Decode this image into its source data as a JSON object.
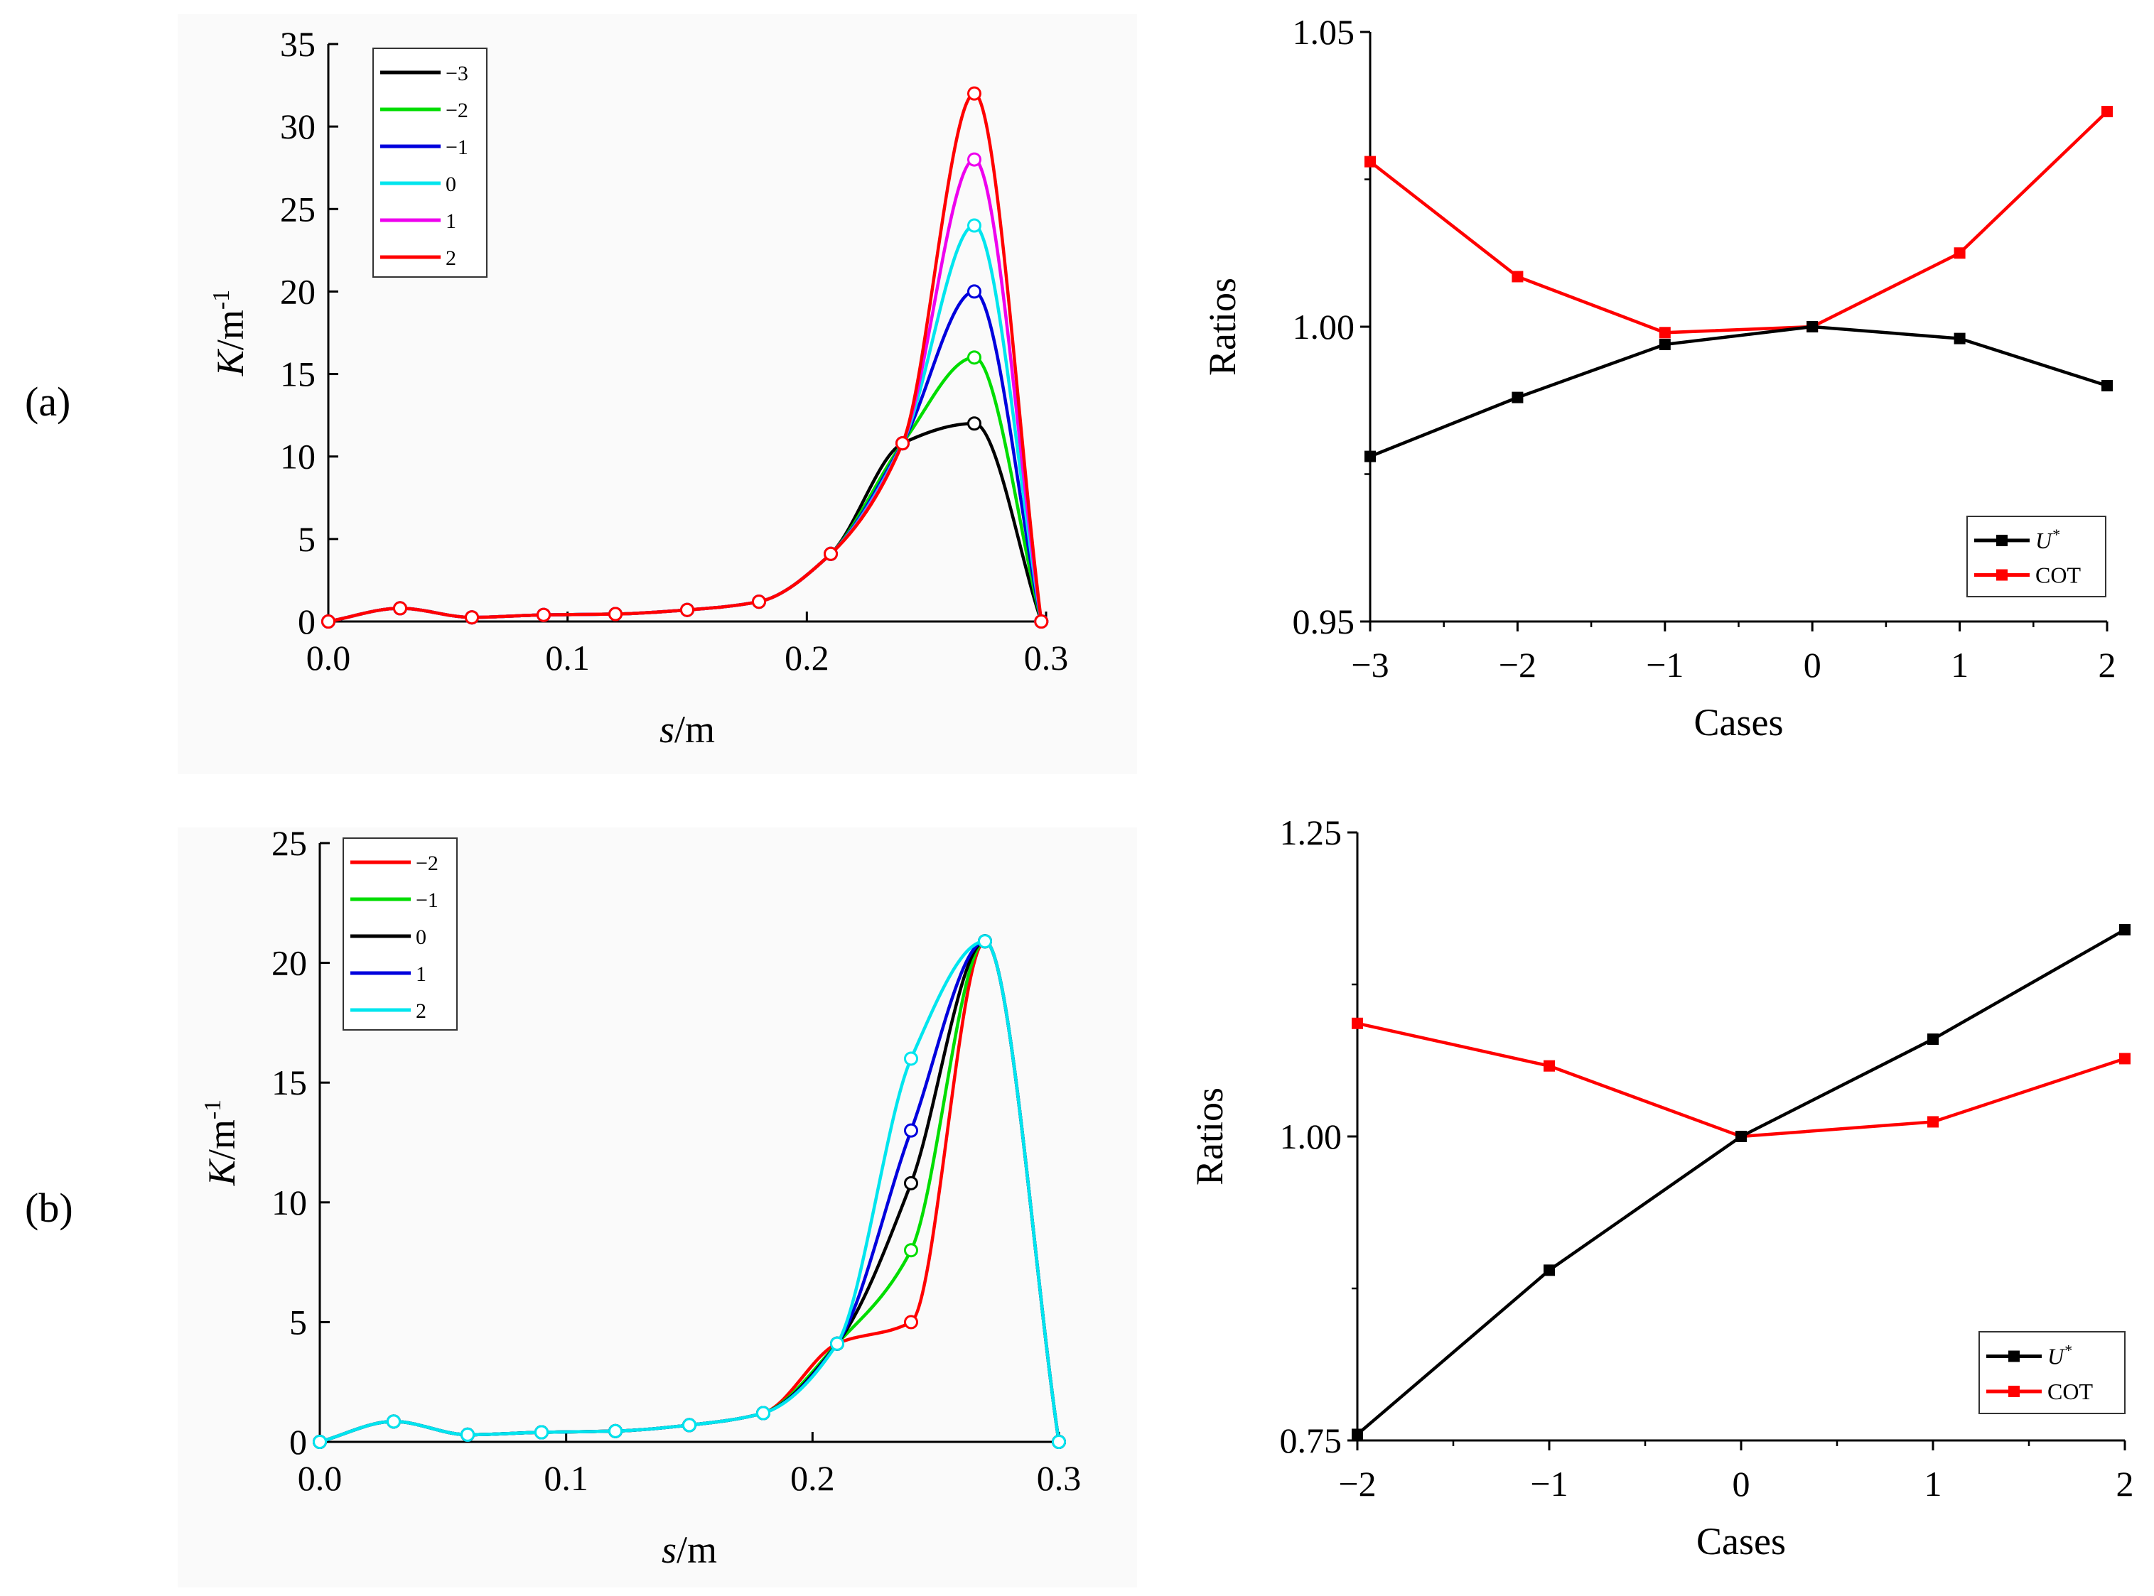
{
  "panel_labels": [
    "(a)",
    "(b)"
  ],
  "colors": {
    "-3": "#000000",
    "-2": "#00dd00",
    "-1": "#0000dd",
    "0": "#00e5ee",
    "1": "#ee00ee",
    "2": "#ff0000",
    "b_-2": "#ff0000",
    "b_-1": "#00dd00",
    "b_0": "#000000",
    "b_1": "#0000dd",
    "b_2": "#00e5ee",
    "U": "#000000",
    "COT": "#ff0000"
  },
  "chart_data": [
    {
      "id": "a-left",
      "type": "line",
      "xlabel_italic": "s",
      "xlabel_unit": "/m",
      "ylabel_italic": "K",
      "ylabel_unit": "/m",
      "ylabel_sup": "-1",
      "xlim": [
        0.0,
        0.3
      ],
      "ylim": [
        0,
        35
      ],
      "xticks": [
        "0.0",
        "0.1",
        "0.2",
        "0.3"
      ],
      "yticks": [
        "0",
        "5",
        "10",
        "15",
        "20",
        "25",
        "30",
        "35"
      ],
      "legend": [
        "−3",
        "−2",
        "−1",
        "0",
        "1",
        "2"
      ],
      "x": [
        0.0,
        0.03,
        0.06,
        0.09,
        0.12,
        0.15,
        0.18,
        0.21,
        0.24,
        0.27,
        0.298
      ],
      "series": [
        {
          "name": "-3",
          "values": [
            0,
            0.8,
            0.25,
            0.4,
            0.45,
            0.7,
            1.2,
            4.1,
            10.8,
            12.0,
            0
          ]
        },
        {
          "name": "-2",
          "values": [
            0,
            0.8,
            0.25,
            0.4,
            0.45,
            0.7,
            1.2,
            4.1,
            10.8,
            16.0,
            0
          ]
        },
        {
          "name": "-1",
          "values": [
            0,
            0.8,
            0.25,
            0.4,
            0.45,
            0.7,
            1.2,
            4.1,
            10.8,
            20.0,
            0
          ]
        },
        {
          "name": "0",
          "values": [
            0,
            0.8,
            0.25,
            0.4,
            0.45,
            0.7,
            1.2,
            4.1,
            10.8,
            24.0,
            0
          ]
        },
        {
          "name": "1",
          "values": [
            0,
            0.8,
            0.25,
            0.4,
            0.45,
            0.7,
            1.2,
            4.1,
            10.8,
            28.0,
            0
          ]
        },
        {
          "name": "2",
          "values": [
            0,
            0.8,
            0.25,
            0.4,
            0.45,
            0.7,
            1.2,
            4.1,
            10.8,
            32.0,
            0
          ]
        }
      ]
    },
    {
      "id": "a-right",
      "type": "line",
      "xlabel": "Cases",
      "ylabel": "Ratios",
      "xlim": [
        -3,
        2
      ],
      "ylim": [
        0.95,
        1.05
      ],
      "xticks": [
        "−3",
        "−2",
        "−1",
        "0",
        "1",
        "2"
      ],
      "yticks": [
        "0.95",
        "1.00",
        "1.05"
      ],
      "x": [
        -3,
        -2,
        -1,
        0,
        1,
        2
      ],
      "series": [
        {
          "name": "U*",
          "values": [
            0.978,
            0.988,
            0.997,
            1.0,
            0.998,
            0.99
          ]
        },
        {
          "name": "COT",
          "values": [
            1.028,
            1.0085,
            0.999,
            1.0,
            1.0125,
            1.0365
          ]
        }
      ]
    },
    {
      "id": "b-left",
      "type": "line",
      "xlabel_italic": "s",
      "xlabel_unit": "/m",
      "ylabel_italic": "K",
      "ylabel_unit": "/m",
      "ylabel_sup": "-1",
      "xlim": [
        0.0,
        0.3
      ],
      "ylim": [
        0,
        25
      ],
      "xticks": [
        "0.0",
        "0.1",
        "0.2",
        "0.3"
      ],
      "yticks": [
        "0",
        "5",
        "10",
        "15",
        "20",
        "25"
      ],
      "legend": [
        "−2",
        "−1",
        "0",
        "1",
        "2"
      ],
      "x": [
        0.0,
        0.03,
        0.06,
        0.09,
        0.12,
        0.15,
        0.18,
        0.21,
        0.24,
        0.27,
        0.3
      ],
      "series": [
        {
          "name": "-2",
          "values": [
            0,
            0.85,
            0.3,
            0.4,
            0.45,
            0.7,
            1.2,
            4.1,
            5.0,
            20.9,
            0
          ]
        },
        {
          "name": "-1",
          "values": [
            0,
            0.85,
            0.3,
            0.4,
            0.45,
            0.7,
            1.2,
            4.1,
            8.0,
            20.9,
            0
          ]
        },
        {
          "name": "0",
          "values": [
            0,
            0.85,
            0.3,
            0.4,
            0.45,
            0.7,
            1.2,
            4.1,
            10.8,
            20.9,
            0
          ]
        },
        {
          "name": "1",
          "values": [
            0,
            0.85,
            0.3,
            0.4,
            0.45,
            0.7,
            1.2,
            4.1,
            13.0,
            20.9,
            0
          ]
        },
        {
          "name": "2",
          "values": [
            0,
            0.85,
            0.3,
            0.4,
            0.45,
            0.7,
            1.2,
            4.1,
            16.0,
            20.9,
            0
          ]
        }
      ]
    },
    {
      "id": "b-right",
      "type": "line",
      "xlabel": "Cases",
      "ylabel": "Ratios",
      "xlim": [
        -2,
        2
      ],
      "ylim": [
        0.75,
        1.25
      ],
      "xticks": [
        "−2",
        "−1",
        "0",
        "1",
        "2"
      ],
      "yticks": [
        "0.75",
        "1.00",
        "1.25"
      ],
      "x": [
        -2,
        -1,
        0,
        1,
        2
      ],
      "series": [
        {
          "name": "U*",
          "values": [
            0.755,
            0.89,
            1.0,
            1.08,
            1.17
          ]
        },
        {
          "name": "COT",
          "values": [
            1.093,
            1.058,
            1.0,
            1.012,
            1.064
          ]
        }
      ]
    }
  ]
}
